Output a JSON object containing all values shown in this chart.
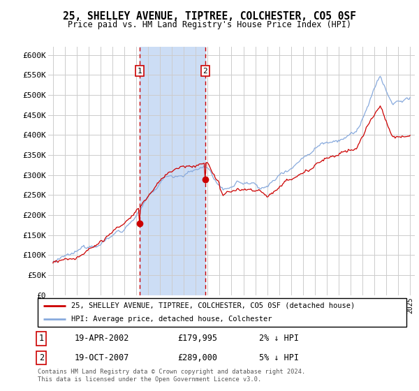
{
  "title1": "25, SHELLEY AVENUE, TIPTREE, COLCHESTER, CO5 0SF",
  "title2": "Price paid vs. HM Land Registry's House Price Index (HPI)",
  "legend_line1": "25, SHELLEY AVENUE, TIPTREE, COLCHESTER, CO5 0SF (detached house)",
  "legend_line2": "HPI: Average price, detached house, Colchester",
  "transaction1": {
    "label": "1",
    "date": "19-APR-2002",
    "price": 179995,
    "pct": "2%",
    "dir": "↓",
    "year": 2002.29
  },
  "transaction2": {
    "label": "2",
    "date": "19-OCT-2007",
    "price": 289000,
    "pct": "5%",
    "dir": "↓",
    "year": 2007.79
  },
  "footer1": "Contains HM Land Registry data © Crown copyright and database right 2024.",
  "footer2": "This data is licensed under the Open Government Licence v3.0.",
  "ylim": [
    0,
    620000
  ],
  "yticks": [
    0,
    50000,
    100000,
    150000,
    200000,
    250000,
    300000,
    350000,
    400000,
    450000,
    500000,
    550000,
    600000
  ],
  "hpi_color": "#88aadd",
  "price_color": "#cc0000",
  "marker_color": "#cc0000",
  "shade_color": "#ccddf5",
  "grid_color": "#cccccc",
  "bg_color": "#ffffff"
}
